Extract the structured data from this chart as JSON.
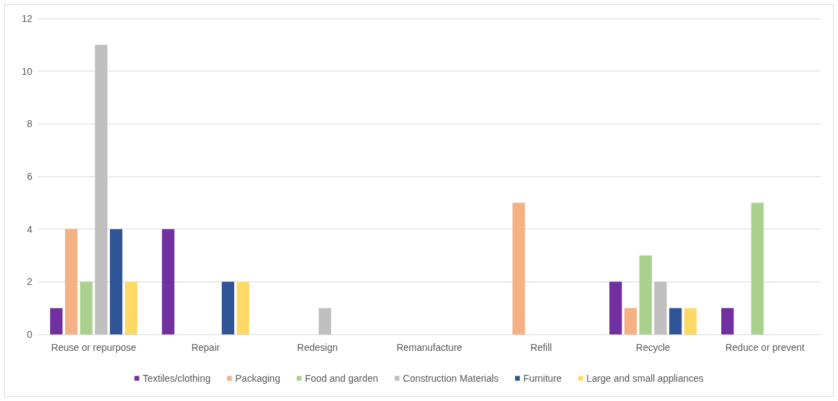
{
  "chart_data": {
    "type": "bar",
    "categories": [
      "Reuse or repurpose",
      "Repair",
      "Redesign",
      "Remanufacture",
      "Refill",
      "Recycle",
      "Reduce or prevent"
    ],
    "series": [
      {
        "name": "Textiles/clothing",
        "color": "#7030a0",
        "values": [
          1,
          4,
          0,
          0,
          0,
          2,
          1
        ]
      },
      {
        "name": "Packaging",
        "color": "#f4b183",
        "values": [
          4,
          0,
          0,
          0,
          5,
          1,
          0
        ]
      },
      {
        "name": "Food and garden",
        "color": "#a9d18e",
        "values": [
          2,
          0,
          0,
          0,
          0,
          3,
          5
        ]
      },
      {
        "name": "Construction Materials",
        "color": "#bfbfbf",
        "values": [
          11,
          0,
          1,
          0,
          0,
          2,
          0
        ]
      },
      {
        "name": "Furniture",
        "color": "#2f5597",
        "values": [
          4,
          2,
          0,
          0,
          0,
          1,
          0
        ]
      },
      {
        "name": "Large and small appliances",
        "color": "#ffd966",
        "values": [
          2,
          2,
          0,
          0,
          0,
          1,
          0
        ]
      }
    ],
    "ylim": [
      0,
      12
    ],
    "yticks": [
      0,
      2,
      4,
      6,
      8,
      10,
      12
    ],
    "grid": "y",
    "legend": "bottom"
  }
}
